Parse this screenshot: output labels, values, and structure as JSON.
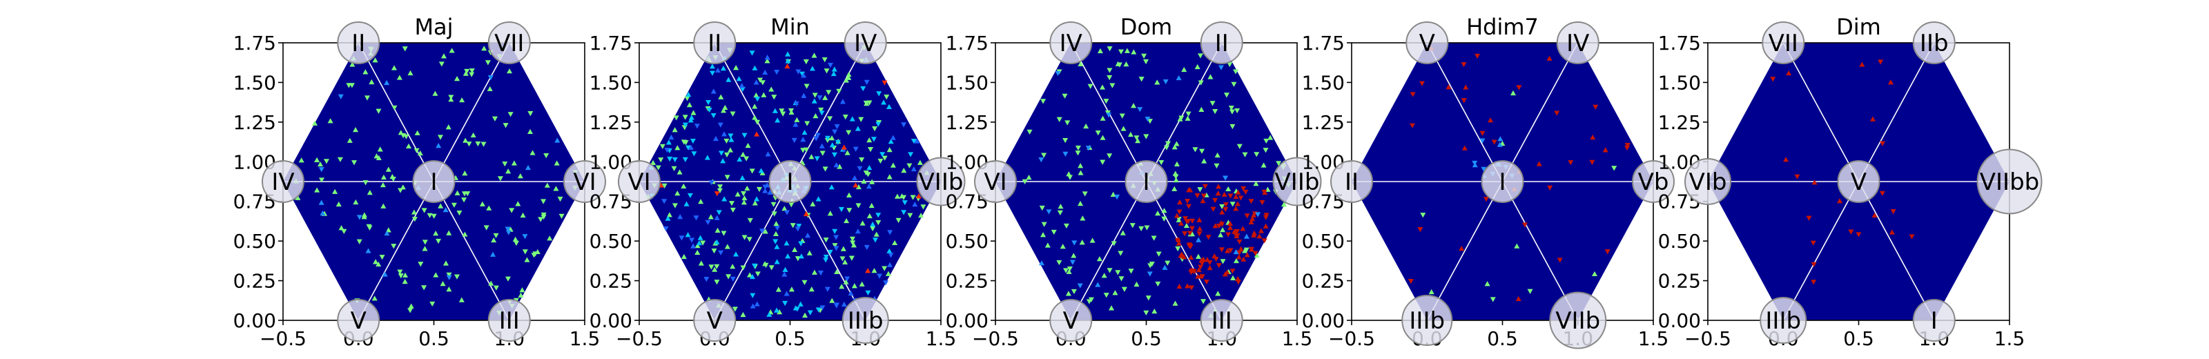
{
  "chart_data": [
    {
      "type": "scatter",
      "title": "Maj",
      "xlim": [
        -0.5,
        1.5
      ],
      "ylim": [
        0.0,
        1.75
      ],
      "xticks": [
        "−0.5",
        "0.0",
        "0.5",
        "1.0",
        "1.5"
      ],
      "yticks": [
        "0.00",
        "0.25",
        "0.50",
        "0.75",
        "1.00",
        "1.25",
        "1.50",
        "1.75"
      ],
      "hex_fill": "#00008f",
      "nodes": [
        {
          "label": "II",
          "x": 0.0,
          "y": 1.75,
          "size": 1.0
        },
        {
          "label": "VII",
          "x": 1.0,
          "y": 1.75,
          "size": 1.0
        },
        {
          "label": "IV",
          "x": -0.5,
          "y": 0.875,
          "size": 1.0
        },
        {
          "label": "I",
          "x": 0.5,
          "y": 0.875,
          "size": 1.0
        },
        {
          "label": "VI",
          "x": 1.5,
          "y": 0.875,
          "size": 1.0
        },
        {
          "label": "V",
          "x": 0.0,
          "y": 0.0,
          "size": 1.0
        },
        {
          "label": "III",
          "x": 1.0,
          "y": 0.0,
          "size": 1.0
        }
      ],
      "series": [
        {
          "color": "#7dff7a",
          "count": 180,
          "seed": 11
        },
        {
          "color": "#1e90ff",
          "count": 20,
          "seed": 12
        }
      ]
    },
    {
      "type": "scatter",
      "title": "Min",
      "xlim": [
        -0.5,
        1.5
      ],
      "ylim": [
        0.0,
        1.75
      ],
      "xticks": [
        "−0.5",
        "0.0",
        "0.5",
        "1.0",
        "1.5"
      ],
      "yticks": [
        "0.00",
        "0.25",
        "0.50",
        "0.75",
        "1.00",
        "1.25",
        "1.50",
        "1.75"
      ],
      "hex_fill": "#00008f",
      "nodes": [
        {
          "label": "II",
          "x": 0.0,
          "y": 1.75,
          "size": 1.0
        },
        {
          "label": "IV",
          "x": 1.0,
          "y": 1.75,
          "size": 1.0
        },
        {
          "label": "VI",
          "x": -0.5,
          "y": 0.875,
          "size": 1.0
        },
        {
          "label": "I",
          "x": 0.5,
          "y": 0.875,
          "size": 1.0
        },
        {
          "label": "VIIb",
          "x": 1.5,
          "y": 0.875,
          "size": 1.15
        },
        {
          "label": "V",
          "x": 0.0,
          "y": 0.0,
          "size": 1.0
        },
        {
          "label": "IIIb",
          "x": 1.0,
          "y": 0.0,
          "size": 1.1
        }
      ],
      "series": [
        {
          "color": "#7dff7a",
          "count": 230,
          "seed": 21
        },
        {
          "color": "#00c8ff",
          "count": 120,
          "seed": 22
        },
        {
          "color": "#1e64ff",
          "count": 90,
          "seed": 23
        },
        {
          "color": "#ff2a00",
          "count": 10,
          "seed": 24
        }
      ]
    },
    {
      "type": "scatter",
      "title": "Dom",
      "xlim": [
        -0.5,
        1.5
      ],
      "ylim": [
        0.0,
        1.75
      ],
      "xticks": [
        "−0.5",
        "0.0",
        "0.5",
        "1.0",
        "1.5"
      ],
      "yticks": [
        "0.00",
        "0.25",
        "0.50",
        "0.75",
        "1.00",
        "1.25",
        "1.50",
        "1.75"
      ],
      "hex_fill": "#00008f",
      "nodes": [
        {
          "label": "IV",
          "x": 0.0,
          "y": 1.75,
          "size": 1.0
        },
        {
          "label": "II",
          "x": 1.0,
          "y": 1.75,
          "size": 1.0
        },
        {
          "label": "VI",
          "x": -0.5,
          "y": 0.875,
          "size": 1.0
        },
        {
          "label": "I",
          "x": 0.5,
          "y": 0.875,
          "size": 1.0
        },
        {
          "label": "VIIb",
          "x": 1.5,
          "y": 0.875,
          "size": 1.15
        },
        {
          "label": "V",
          "x": 0.0,
          "y": 0.0,
          "size": 1.0
        },
        {
          "label": "III",
          "x": 1.0,
          "y": 0.0,
          "size": 1.0
        }
      ],
      "series": [
        {
          "color": "#7dff7a",
          "count": 190,
          "seed": 31
        },
        {
          "color": "#c81400",
          "count": 120,
          "seed": 32,
          "region": [
            0.7,
            1.3,
            0.2,
            0.85
          ]
        },
        {
          "color": "#1e90ff",
          "count": 25,
          "seed": 33
        }
      ]
    },
    {
      "type": "scatter",
      "title": "Hdim7",
      "xlim": [
        -0.5,
        1.5
      ],
      "ylim": [
        0.0,
        1.75
      ],
      "xticks": [
        "−0.5",
        "0.0",
        "0.5",
        "1.0",
        "1.5"
      ],
      "yticks": [
        "0.00",
        "0.25",
        "0.50",
        "0.75",
        "1.00",
        "1.25",
        "1.50",
        "1.75"
      ],
      "hex_fill": "#00008f",
      "nodes": [
        {
          "label": "V",
          "x": 0.0,
          "y": 1.75,
          "size": 1.0
        },
        {
          "label": "IV",
          "x": 1.0,
          "y": 1.75,
          "size": 1.0
        },
        {
          "label": "II",
          "x": -0.5,
          "y": 0.875,
          "size": 1.0
        },
        {
          "label": "I",
          "x": 0.5,
          "y": 0.875,
          "size": 1.0
        },
        {
          "label": "Vb",
          "x": 1.5,
          "y": 0.875,
          "size": 1.0
        },
        {
          "label": "IIIb",
          "x": 0.0,
          "y": 0.0,
          "size": 1.2
        },
        {
          "label": "VIIb",
          "x": 1.0,
          "y": 0.0,
          "size": 1.35
        }
      ],
      "series": [
        {
          "color": "#c81400",
          "count": 35,
          "seed": 41
        },
        {
          "color": "#7dff7a",
          "count": 10,
          "seed": 42
        },
        {
          "color": "#1e90ff",
          "count": 12,
          "seed": 43,
          "region": [
            0.3,
            0.6,
            0.9,
            1.2
          ]
        }
      ]
    },
    {
      "type": "scatter",
      "title": "Dim",
      "xlim": [
        -0.5,
        1.5
      ],
      "ylim": [
        0.0,
        1.75
      ],
      "xticks": [
        "−0.5",
        "0.0",
        "0.5",
        "1.0",
        "1.5"
      ],
      "yticks": [
        "0.00",
        "0.25",
        "0.50",
        "0.75",
        "1.00",
        "1.25",
        "1.50",
        "1.75"
      ],
      "hex_fill": "#00008f",
      "nodes": [
        {
          "label": "VII",
          "x": 0.0,
          "y": 1.75,
          "size": 1.0
        },
        {
          "label": "IIb",
          "x": 1.0,
          "y": 1.75,
          "size": 1.0
        },
        {
          "label": "VIb",
          "x": -0.5,
          "y": 0.875,
          "size": 1.1
        },
        {
          "label": "V",
          "x": 0.5,
          "y": 0.875,
          "size": 1.0
        },
        {
          "label": "VIIbb",
          "x": 1.5,
          "y": 0.875,
          "size": 1.55
        },
        {
          "label": "IIIb",
          "x": 0.0,
          "y": 0.0,
          "size": 1.1
        },
        {
          "label": "I",
          "x": 1.0,
          "y": 0.0,
          "size": 1.0
        }
      ],
      "series": [
        {
          "color": "#c81400",
          "count": 22,
          "seed": 51
        }
      ]
    }
  ]
}
